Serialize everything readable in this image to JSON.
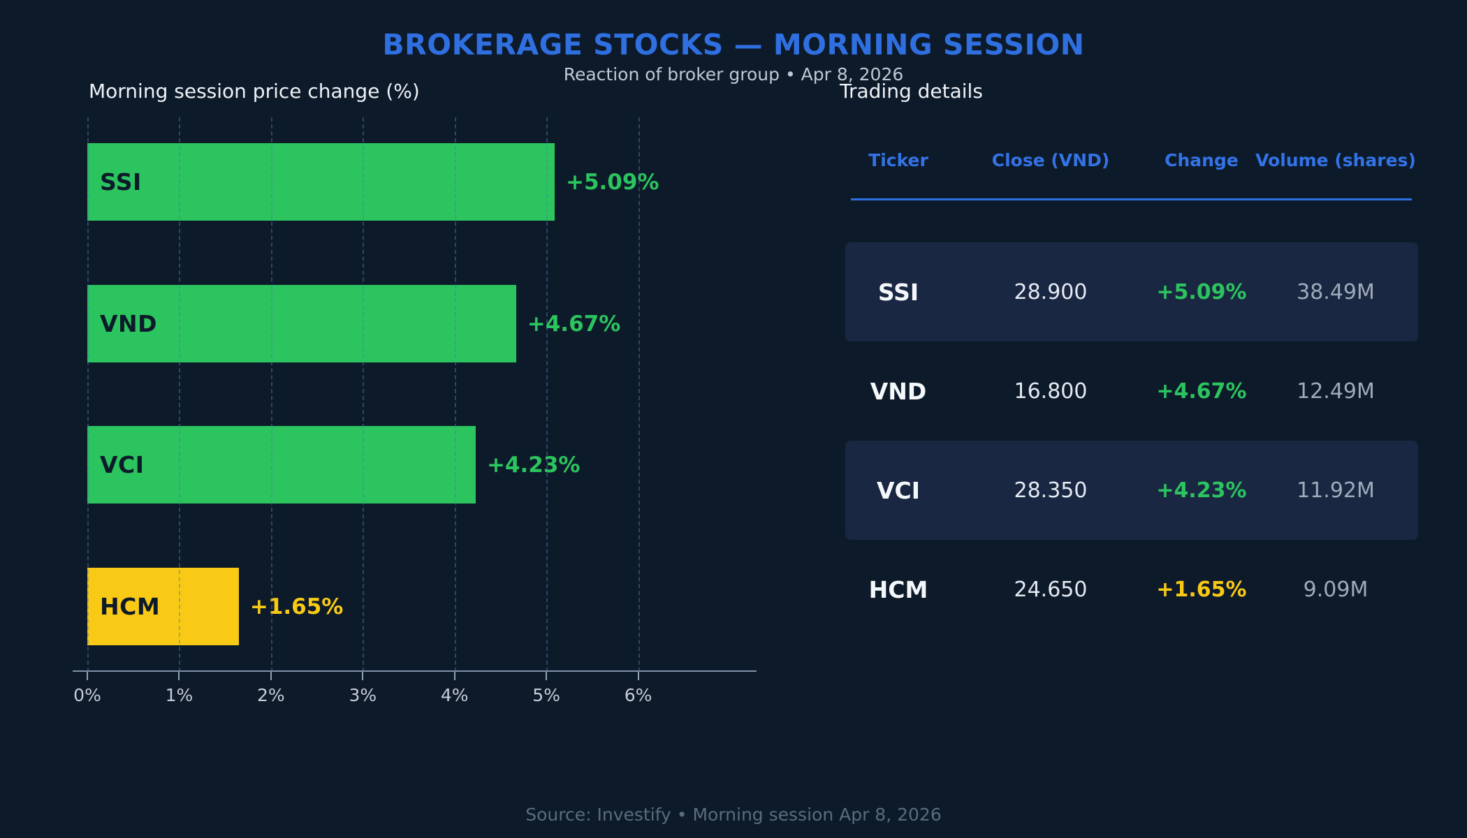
{
  "header": {
    "title": "BROKERAGE STOCKS — MORNING SESSION",
    "subtitle": "Reaction of broker group  •  Apr 8, 2026"
  },
  "chart_data": {
    "type": "bar",
    "orientation": "horizontal",
    "title": "Morning session price change (%)",
    "categories": [
      "SSI",
      "VND",
      "VCI",
      "HCM"
    ],
    "values": [
      5.09,
      4.67,
      4.23,
      1.65
    ],
    "value_labels": [
      "+5.09%",
      "+4.67%",
      "+4.23%",
      "+1.65%"
    ],
    "bar_colors": [
      "#2bc45e",
      "#2bc45e",
      "#2bc45e",
      "#f9ca15"
    ],
    "xlabel": "",
    "ylabel": "",
    "xlim": [
      0,
      7
    ],
    "xticks": [
      "0%",
      "1%",
      "2%",
      "3%",
      "4%",
      "5%",
      "6%"
    ],
    "grid": "dashed-vertical",
    "legend": "none"
  },
  "table": {
    "title": "Trading details",
    "columns": [
      "Ticker",
      "Close (VND)",
      "Change",
      "Volume (shares)"
    ],
    "rows": [
      {
        "ticker": "SSI",
        "close": "28.900",
        "change": "+5.09%",
        "volume": "38.49M",
        "highlight": true,
        "change_color": "#2bc45e"
      },
      {
        "ticker": "VND",
        "close": "16.800",
        "change": "+4.67%",
        "volume": "12.49M",
        "highlight": false,
        "change_color": "#2bc45e"
      },
      {
        "ticker": "VCI",
        "close": "28.350",
        "change": "+4.23%",
        "volume": "11.92M",
        "highlight": true,
        "change_color": "#2bc45e"
      },
      {
        "ticker": "HCM",
        "close": "24.650",
        "change": "+1.65%",
        "volume": "9.09M",
        "highlight": false,
        "change_color": "#f9ca15"
      }
    ]
  },
  "footer": {
    "text": "Source: Investify  •  Morning session Apr 8, 2026"
  }
}
